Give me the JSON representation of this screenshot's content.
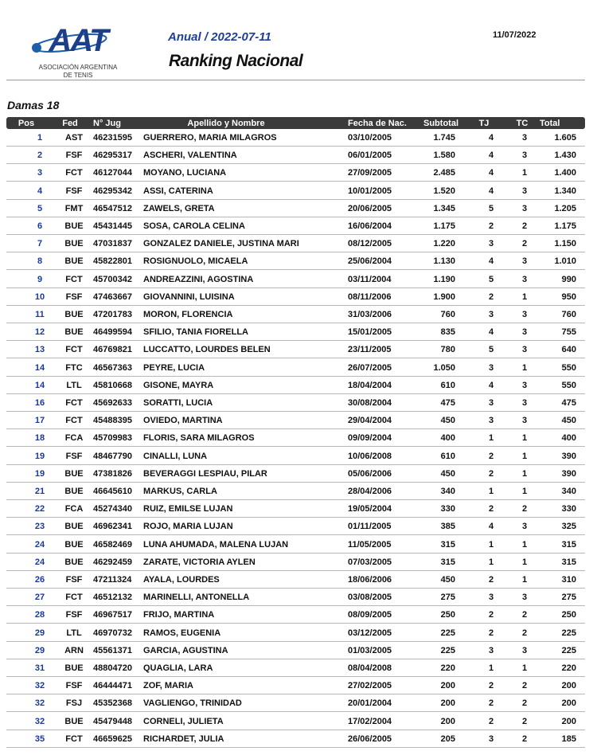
{
  "header": {
    "logo": {
      "mark": "AAT",
      "line1": "ASOCIACIÓN ARGENTINA",
      "line2": "DE TENIS"
    },
    "subtitle": "Anual / 2022-07-11",
    "title": "Ranking Nacional",
    "date": "11/07/2022"
  },
  "section": "Damas 18",
  "table": {
    "header": [
      "Pos",
      "Fed",
      "N° Jug",
      "Apellido y Nombre",
      "Fecha de Nac.",
      "Subtotal",
      "TJ",
      "TC",
      "Total"
    ],
    "rows": [
      [
        "1",
        "AST",
        "46231595",
        "GUERRERO, MARIA MILAGROS",
        "03/10/2005",
        "1.745",
        "4",
        "3",
        "1.605"
      ],
      [
        "2",
        "FSF",
        "46295317",
        "ASCHERI, VALENTINA",
        "06/01/2005",
        "1.580",
        "4",
        "3",
        "1.430"
      ],
      [
        "3",
        "FCT",
        "46127044",
        "MOYANO, LUCIANA",
        "27/09/2005",
        "2.485",
        "4",
        "1",
        "1.400"
      ],
      [
        "4",
        "FSF",
        "46295342",
        "ASSI, CATERINA",
        "10/01/2005",
        "1.520",
        "4",
        "3",
        "1.340"
      ],
      [
        "5",
        "FMT",
        "46547512",
        "ZAWELS, GRETA",
        "20/06/2005",
        "1.345",
        "5",
        "3",
        "1.205"
      ],
      [
        "6",
        "BUE",
        "45431445",
        "SOSA, CAROLA CELINA",
        "16/06/2004",
        "1.175",
        "2",
        "2",
        "1.175"
      ],
      [
        "7",
        "BUE",
        "47031837",
        "GONZALEZ DANIELE, JUSTINA MARI",
        "08/12/2005",
        "1.220",
        "3",
        "2",
        "1.150"
      ],
      [
        "8",
        "BUE",
        "45822801",
        "ROSIGNUOLO, MICAELA",
        "25/06/2004",
        "1.130",
        "4",
        "3",
        "1.010"
      ],
      [
        "9",
        "FCT",
        "45700342",
        "ANDREAZZINI, AGOSTINA",
        "03/11/2004",
        "1.190",
        "5",
        "3",
        "990"
      ],
      [
        "10",
        "FSF",
        "47463667",
        "GIOVANNINI, LUISINA",
        "08/11/2006",
        "1.900",
        "2",
        "1",
        "950"
      ],
      [
        "11",
        "BUE",
        "47201783",
        "MORON, FLORENCIA",
        "31/03/2006",
        "760",
        "3",
        "3",
        "760"
      ],
      [
        "12",
        "BUE",
        "46499594",
        "SFILIO, TANIA FIORELLA",
        "15/01/2005",
        "835",
        "4",
        "3",
        "755"
      ],
      [
        "13",
        "FCT",
        "46769821",
        "LUCCATTO, LOURDES BELEN",
        "23/11/2005",
        "780",
        "5",
        "3",
        "640"
      ],
      [
        "14",
        "FTC",
        "46567363",
        "PEYRE, LUCIA",
        "26/07/2005",
        "1.050",
        "3",
        "1",
        "550"
      ],
      [
        "14",
        "LTL",
        "45810668",
        "GISONE, MAYRA",
        "18/04/2004",
        "610",
        "4",
        "3",
        "550"
      ],
      [
        "16",
        "FCT",
        "45692633",
        "SORATTI, LUCIA",
        "30/08/2004",
        "475",
        "3",
        "3",
        "475"
      ],
      [
        "17",
        "FCT",
        "45488395",
        "OVIEDO, MARTINA",
        "29/04/2004",
        "450",
        "3",
        "3",
        "450"
      ],
      [
        "18",
        "FCA",
        "45709983",
        "FLORIS, SARA MILAGROS",
        "09/09/2004",
        "400",
        "1",
        "1",
        "400"
      ],
      [
        "19",
        "FSF",
        "48467790",
        "CINALLI, LUNA",
        "10/06/2008",
        "610",
        "2",
        "1",
        "390"
      ],
      [
        "19",
        "BUE",
        "47381826",
        "BEVERAGGI LESPIAU, PILAR",
        "05/06/2006",
        "450",
        "2",
        "1",
        "390"
      ],
      [
        "21",
        "BUE",
        "46645610",
        "MARKUS, CARLA",
        "28/04/2006",
        "340",
        "1",
        "1",
        "340"
      ],
      [
        "22",
        "FCA",
        "45274340",
        "RUIZ, EMILSE LUJAN",
        "19/05/2004",
        "330",
        "2",
        "2",
        "330"
      ],
      [
        "23",
        "BUE",
        "46962341",
        "ROJO, MARIA LUJAN",
        "01/11/2005",
        "385",
        "4",
        "3",
        "325"
      ],
      [
        "24",
        "BUE",
        "46582469",
        "LUNA AHUMADA, MALENA LUJAN",
        "11/05/2005",
        "315",
        "1",
        "1",
        "315"
      ],
      [
        "24",
        "BUE",
        "46292459",
        "ZARATE, VICTORIA AYLEN",
        "07/03/2005",
        "315",
        "1",
        "1",
        "315"
      ],
      [
        "26",
        "FSF",
        "47211324",
        "AYALA, LOURDES",
        "18/06/2006",
        "450",
        "2",
        "1",
        "310"
      ],
      [
        "27",
        "FCT",
        "46512132",
        "MARINELLI, ANTONELLA",
        "03/08/2005",
        "275",
        "3",
        "3",
        "275"
      ],
      [
        "28",
        "FSF",
        "46967517",
        "FRIJO, MARTINA",
        "08/09/2005",
        "250",
        "2",
        "2",
        "250"
      ],
      [
        "29",
        "LTL",
        "46970732",
        "RAMOS, EUGENIA",
        "03/12/2005",
        "225",
        "2",
        "2",
        "225"
      ],
      [
        "29",
        "ARN",
        "45561371",
        "GARCIA, AGUSTINA",
        "01/03/2005",
        "225",
        "3",
        "3",
        "225"
      ],
      [
        "31",
        "BUE",
        "48804720",
        "QUAGLIA, LARA",
        "08/04/2008",
        "220",
        "1",
        "1",
        "220"
      ],
      [
        "32",
        "FSF",
        "46444471",
        "ZOF, MARIA",
        "27/02/2005",
        "200",
        "2",
        "2",
        "200"
      ],
      [
        "32",
        "FSJ",
        "45352368",
        "VAGLIENGO, TRINIDAD",
        "20/01/2004",
        "200",
        "2",
        "2",
        "200"
      ],
      [
        "32",
        "BUE",
        "45479448",
        "CORNELI, JULIETA",
        "17/02/2004",
        "200",
        "2",
        "2",
        "200"
      ],
      [
        "35",
        "FCT",
        "46659625",
        "RICHARDET, JULIA",
        "26/06/2005",
        "205",
        "3",
        "2",
        "185"
      ]
    ]
  }
}
